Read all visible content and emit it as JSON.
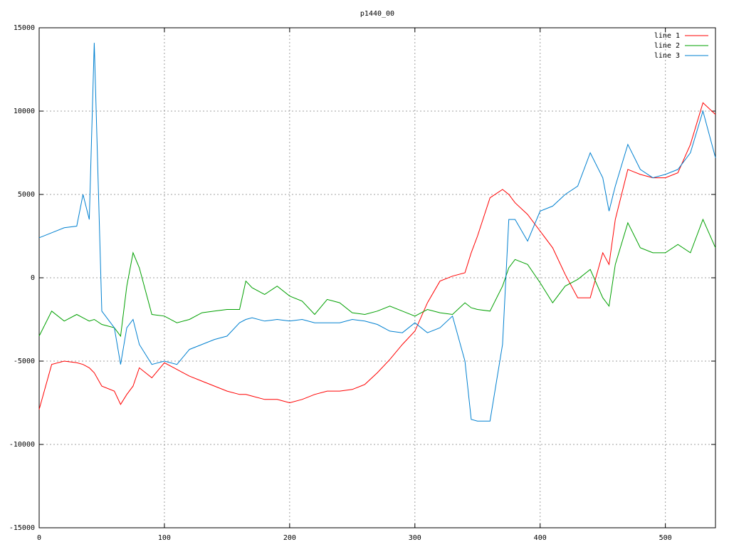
{
  "chart_data": {
    "type": "line",
    "title": "p1440_00",
    "x": [
      0,
      10,
      20,
      30,
      35,
      40,
      44,
      50,
      60,
      65,
      70,
      75,
      80,
      90,
      100,
      110,
      120,
      130,
      140,
      150,
      160,
      165,
      170,
      180,
      190,
      200,
      210,
      220,
      230,
      240,
      250,
      260,
      270,
      280,
      290,
      300,
      310,
      320,
      330,
      340,
      345,
      350,
      360,
      370,
      375,
      380,
      390,
      400,
      410,
      420,
      430,
      440,
      450,
      455,
      460,
      470,
      480,
      490,
      500,
      510,
      520,
      530,
      540
    ],
    "series": [
      {
        "name": "line 1",
        "color": "#ff0000",
        "values": [
          -7900,
          -5200,
          -5000,
          -5100,
          -5200,
          -5400,
          -5700,
          -6500,
          -6800,
          -7600,
          -7000,
          -6500,
          -5400,
          -6000,
          -5100,
          -5500,
          -5900,
          -6200,
          -6500,
          -6800,
          -7000,
          -7000,
          -7100,
          -7300,
          -7300,
          -7500,
          -7300,
          -7000,
          -6800,
          -6800,
          -6700,
          -6400,
          -5700,
          -4900,
          -4000,
          -3200,
          -1500,
          -200,
          100,
          300,
          1500,
          2500,
          4800,
          5300,
          5000,
          4500,
          3800,
          2800,
          1800,
          200,
          -1200,
          -1200,
          1500,
          800,
          3500,
          6500,
          6200,
          6000,
          6000,
          6300,
          8000,
          10500,
          9800
        ]
      },
      {
        "name": "line 2",
        "color": "#00a000",
        "values": [
          -3500,
          -2000,
          -2600,
          -2200,
          -2400,
          -2600,
          -2500,
          -2800,
          -3000,
          -3500,
          -500,
          1500,
          600,
          -2200,
          -2300,
          -2700,
          -2500,
          -2100,
          -2000,
          -1900,
          -1900,
          -200,
          -600,
          -1000,
          -500,
          -1100,
          -1400,
          -2200,
          -1300,
          -1500,
          -2100,
          -2200,
          -2000,
          -1700,
          -2000,
          -2300,
          -1900,
          -2100,
          -2200,
          -1500,
          -1800,
          -1900,
          -2000,
          -500,
          600,
          1100,
          800,
          -300,
          -1500,
          -500,
          -100,
          500,
          -1200,
          -1700,
          800,
          3300,
          1800,
          1500,
          1500,
          2000,
          1500,
          3500,
          1800
        ]
      },
      {
        "name": "line 3",
        "color": "#0080d0",
        "values": [
          2400,
          2700,
          3000,
          3100,
          5000,
          3500,
          14100,
          -2000,
          -3000,
          -5200,
          -3000,
          -2500,
          -4000,
          -5200,
          -5000,
          -5200,
          -4300,
          -4000,
          -3700,
          -3500,
          -2700,
          -2500,
          -2400,
          -2600,
          -2500,
          -2600,
          -2500,
          -2700,
          -2700,
          -2700,
          -2500,
          -2600,
          -2800,
          -3200,
          -3300,
          -2700,
          -3300,
          -3000,
          -2300,
          -5000,
          -8500,
          -8600,
          -8600,
          -4000,
          3500,
          3500,
          2200,
          4000,
          4300,
          5000,
          5500,
          7500,
          6000,
          4000,
          5500,
          8000,
          6500,
          6000,
          6200,
          6500,
          7500,
          10000,
          7200
        ]
      }
    ],
    "xlim": [
      0,
      540
    ],
    "xticks": [
      0,
      100,
      200,
      300,
      400,
      500
    ],
    "ylim": [
      -15000,
      15000
    ],
    "yticks": [
      -15000,
      -10000,
      -5000,
      0,
      5000,
      10000,
      15000
    ],
    "grid": true,
    "legend": "top-right"
  }
}
